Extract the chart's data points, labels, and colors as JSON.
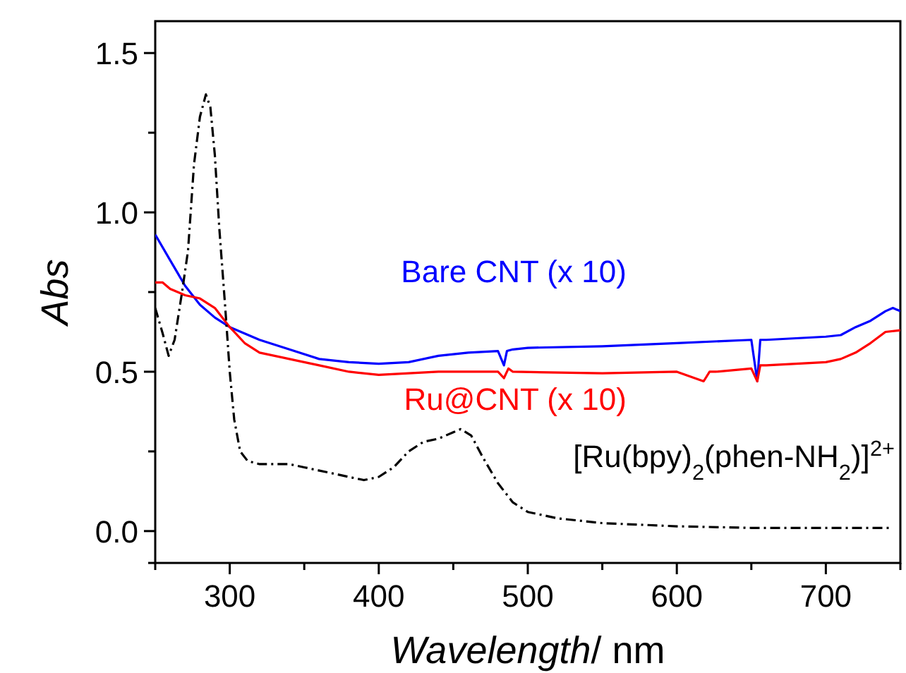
{
  "chart_data": {
    "type": "line",
    "xlabel": "Wavelength/ nm",
    "ylabel": "Abs",
    "xlim": [
      250,
      750
    ],
    "ylim": [
      -0.1,
      1.6
    ],
    "xticks": [
      {
        "value": 250,
        "label": null
      },
      300,
      {
        "value": 350,
        "label": null
      },
      400,
      {
        "value": 450,
        "label": null
      },
      500,
      {
        "value": 550,
        "label": null
      },
      600,
      {
        "value": 650,
        "label": null
      },
      700,
      {
        "value": 750,
        "label": null
      }
    ],
    "yticks": [
      {
        "value": -0.1,
        "label": null
      },
      {
        "value": 0,
        "label": "0.0"
      },
      {
        "value": 0.25,
        "label": null
      },
      0.5,
      {
        "value": 0.75,
        "label": null
      },
      {
        "value": 1,
        "label": "1.0"
      },
      {
        "value": 1.25,
        "label": null
      },
      1.5
    ],
    "grid": false,
    "marker": "none",
    "series": [
      {
        "name": "Bare CNT (x 10)",
        "color": "#0000ff",
        "line_style": "solid",
        "x": [
          250,
          260,
          270,
          280,
          290,
          300,
          320,
          340,
          360,
          380,
          400,
          420,
          440,
          460,
          480,
          484,
          486,
          490,
          500,
          550,
          600,
          650,
          654,
          656,
          660,
          700,
          710,
          720,
          730,
          740,
          745,
          750
        ],
        "values": [
          0.93,
          0.85,
          0.77,
          0.71,
          0.67,
          0.64,
          0.6,
          0.57,
          0.54,
          0.53,
          0.525,
          0.53,
          0.55,
          0.56,
          0.565,
          0.52,
          0.565,
          0.57,
          0.575,
          0.58,
          0.59,
          0.6,
          0.47,
          0.6,
          0.6,
          0.61,
          0.615,
          0.64,
          0.66,
          0.69,
          0.7,
          0.69
        ]
      },
      {
        "name": "Ru@CNT (x 10)",
        "color": "#ff0000",
        "line_style": "solid",
        "x": [
          250,
          255,
          260,
          270,
          280,
          290,
          300,
          310,
          320,
          340,
          360,
          380,
          400,
          420,
          440,
          460,
          480,
          484,
          487,
          490,
          550,
          600,
          618,
          622,
          626,
          650,
          654,
          656,
          660,
          700,
          710,
          720,
          730,
          740,
          750
        ],
        "values": [
          0.78,
          0.78,
          0.76,
          0.74,
          0.73,
          0.7,
          0.64,
          0.59,
          0.56,
          0.54,
          0.52,
          0.5,
          0.49,
          0.495,
          0.5,
          0.5,
          0.5,
          0.48,
          0.51,
          0.5,
          0.495,
          0.5,
          0.47,
          0.5,
          0.5,
          0.51,
          0.47,
          0.52,
          0.52,
          0.53,
          0.54,
          0.56,
          0.59,
          0.625,
          0.63
        ]
      },
      {
        "name": "[Ru(bpy)$_{2}$(phen-NH$_{2}$)]$^{2+}$",
        "color": "#000000",
        "line_style": "dashed",
        "x": [
          250,
          255,
          259,
          263,
          268,
          272,
          276,
          280,
          284,
          287,
          290,
          293,
          297,
          300,
          303,
          307,
          312,
          320,
          340,
          350,
          370,
          390,
          400,
          410,
          420,
          430,
          440,
          450,
          455,
          462,
          470,
          480,
          490,
          500,
          520,
          550,
          600,
          650,
          700,
          745
        ],
        "values": [
          0.7,
          0.62,
          0.55,
          0.6,
          0.75,
          0.88,
          1.15,
          1.3,
          1.37,
          1.33,
          1.18,
          0.95,
          0.7,
          0.5,
          0.35,
          0.25,
          0.22,
          0.21,
          0.21,
          0.2,
          0.18,
          0.16,
          0.17,
          0.2,
          0.25,
          0.28,
          0.29,
          0.31,
          0.32,
          0.3,
          0.23,
          0.15,
          0.09,
          0.06,
          0.04,
          0.025,
          0.015,
          0.01,
          0.01,
          0.01
        ]
      }
    ]
  }
}
